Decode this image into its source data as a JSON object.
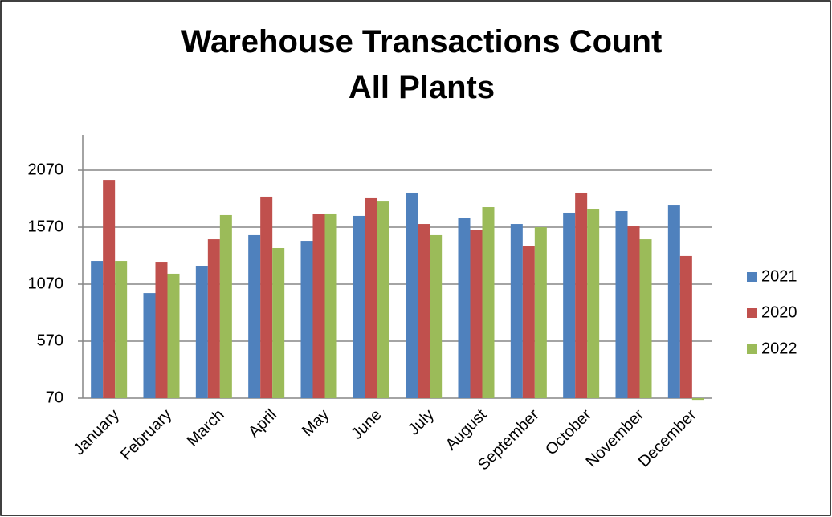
{
  "chart_data": {
    "type": "bar",
    "title": [
      "Warehouse Transactions Count",
      "All Plants"
    ],
    "categories": [
      "January",
      "February",
      "March",
      "April",
      "May",
      "June",
      "July",
      "August",
      "September",
      "October",
      "November",
      "December"
    ],
    "series": [
      {
        "name": "2021",
        "color": "#4f81bd",
        "values": [
          1274,
          992,
          1232,
          1500,
          1450,
          1669,
          1873,
          1648,
          1598,
          1697,
          1711,
          1767
        ]
      },
      {
        "name": "2020",
        "color": "#c0504d",
        "values": [
          1985,
          1267,
          1464,
          1838,
          1683,
          1824,
          1598,
          1542,
          1401,
          1873,
          1577,
          1317
        ]
      },
      {
        "name": "2022",
        "color": "#9bbb59",
        "values": [
          1274,
          1162,
          1676,
          1387,
          1690,
          1802,
          1500,
          1746,
          1570,
          1732,
          1464,
          55
        ]
      }
    ],
    "ylim": [
      70,
      2380
    ],
    "yticks": [
      70,
      570,
      1070,
      1570,
      2070
    ],
    "grid": true,
    "legend": "right"
  }
}
